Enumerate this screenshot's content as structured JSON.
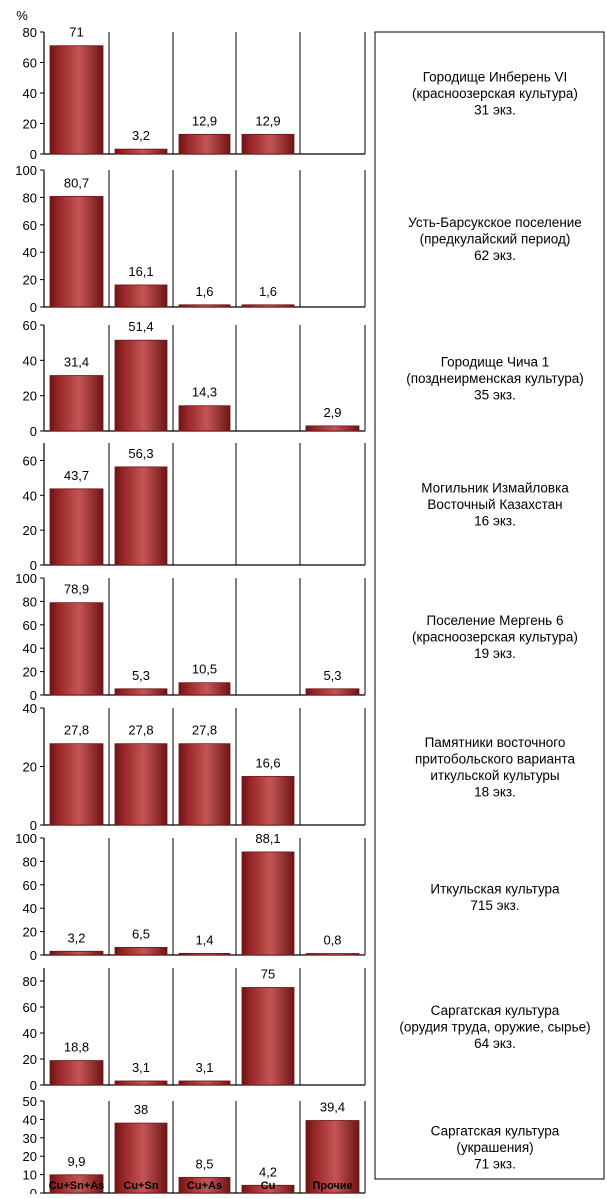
{
  "unit": "%",
  "categories": [
    "Cu+Sn+As",
    "Cu+Sn",
    "Cu+As",
    "Cu",
    "Прочие"
  ],
  "colors": {
    "bar": "#9e2a2b",
    "bar_dark": "#6e1415",
    "bar_light": "#c45556",
    "axis": "#000000",
    "divider": "#000000"
  },
  "chart_data": [
    {
      "type": "bar",
      "ylim": [
        0,
        80
      ],
      "yticks": [
        0,
        20,
        40,
        60,
        80
      ],
      "values": [
        71,
        3.2,
        12.9,
        12.9,
        null
      ],
      "labels": [
        "71",
        "3,2",
        "12,9",
        "12,9",
        ""
      ],
      "caption": [
        "Городище Инберень VI",
        "(красноозерская культура)",
        "31 экз."
      ]
    },
    {
      "type": "bar",
      "ylim": [
        0,
        100
      ],
      "yticks": [
        0,
        20,
        40,
        60,
        80,
        100
      ],
      "values": [
        80.7,
        16.1,
        1.6,
        1.6,
        null
      ],
      "labels": [
        "80,7",
        "16,1",
        "1,6",
        "1,6",
        ""
      ],
      "caption": [
        "Усть-Барсукское поселение",
        "(предкулайский период)",
        "62 экз."
      ]
    },
    {
      "type": "bar",
      "ylim": [
        0,
        60
      ],
      "yticks": [
        0,
        20,
        40,
        60
      ],
      "values": [
        31.4,
        51.4,
        14.3,
        null,
        2.9
      ],
      "labels": [
        "31,4",
        "51,4",
        "14,3",
        "",
        "2,9"
      ],
      "caption": [
        "Городище Чича 1",
        "(позднеирменская культура)",
        "35 экз."
      ]
    },
    {
      "type": "bar",
      "ylim": [
        0,
        70
      ],
      "yticks": [
        0,
        20,
        40,
        60
      ],
      "values": [
        43.7,
        56.3,
        null,
        null,
        null
      ],
      "labels": [
        "43,7",
        "56,3",
        "",
        "",
        ""
      ],
      "caption": [
        "Могильник Измайловка",
        "Восточный Казахстан",
        "16 экз."
      ]
    },
    {
      "type": "bar",
      "ylim": [
        0,
        100
      ],
      "yticks": [
        0,
        20,
        40,
        60,
        80,
        100
      ],
      "values": [
        78.9,
        5.3,
        10.5,
        null,
        5.3
      ],
      "labels": [
        "78,9",
        "5,3",
        "10,5",
        "",
        "5,3"
      ],
      "caption": [
        "Поселение Мергень 6",
        "(красноозерская культура)",
        "19 экз."
      ]
    },
    {
      "type": "bar",
      "ylim": [
        0,
        40
      ],
      "yticks": [
        0,
        20,
        40
      ],
      "values": [
        27.8,
        27.8,
        27.8,
        16.6,
        null
      ],
      "labels": [
        "27,8",
        "27,8",
        "27,8",
        "16,6",
        ""
      ],
      "caption": [
        "Памятники восточного",
        "притобольского варианта",
        "иткульской культуры",
        "18 экз."
      ]
    },
    {
      "type": "bar",
      "ylim": [
        0,
        100
      ],
      "yticks": [
        0,
        20,
        40,
        60,
        80,
        100
      ],
      "values": [
        3.2,
        6.5,
        1.4,
        88.1,
        0.8
      ],
      "labels": [
        "3,2",
        "6,5",
        "1,4",
        "88,1",
        "0,8"
      ],
      "caption": [
        "Иткульская культура",
        "715 экз."
      ]
    },
    {
      "type": "bar",
      "ylim": [
        0,
        90
      ],
      "yticks": [
        0,
        20,
        40,
        60,
        80
      ],
      "values": [
        18.8,
        3.1,
        3.1,
        75,
        null
      ],
      "labels": [
        "18,8",
        "3,1",
        "3,1",
        "75",
        ""
      ],
      "caption": [
        "Саргатская культура",
        "(орудия труда, оружие, сырье)",
        "64 экз."
      ]
    },
    {
      "type": "bar",
      "ylim": [
        0,
        50
      ],
      "yticks": [
        0,
        10,
        20,
        30,
        40,
        50
      ],
      "values": [
        9.9,
        38,
        8.5,
        4.2,
        39.4
      ],
      "labels": [
        "9,9",
        "38",
        "8,5",
        "4,2",
        "39,4"
      ],
      "caption": [
        "Саргатская культура",
        "(украшения)",
        "71 экз."
      ]
    }
  ]
}
